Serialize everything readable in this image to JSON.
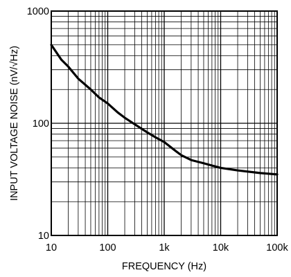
{
  "chart_data": {
    "type": "line",
    "title": "",
    "xlabel": "FREQUENCY (Hz)",
    "ylabel": "INPUT VOLTAGE NOISE (nV/√Hz)",
    "x_scale": "log",
    "y_scale": "log",
    "xlim": [
      10,
      100000
    ],
    "ylim": [
      10,
      1000
    ],
    "grid": true,
    "legend": "none",
    "x_ticks": [
      "10",
      "100",
      "1k",
      "10k",
      "100k"
    ],
    "y_ticks": [
      "10",
      "100",
      "1000"
    ],
    "line_color": "#000000",
    "series": [
      {
        "x": [
          10,
          15,
          20,
          30,
          50,
          70,
          100,
          150,
          200,
          300,
          500,
          700,
          1000,
          1500,
          2000,
          3000,
          5000,
          7000,
          10000,
          20000,
          50000,
          100000
        ],
        "y": [
          500,
          370,
          320,
          250,
          200,
          170,
          150,
          125,
          112,
          98,
          83,
          75,
          68,
          58,
          52,
          47,
          44,
          42,
          40,
          38,
          36,
          35
        ]
      }
    ]
  }
}
